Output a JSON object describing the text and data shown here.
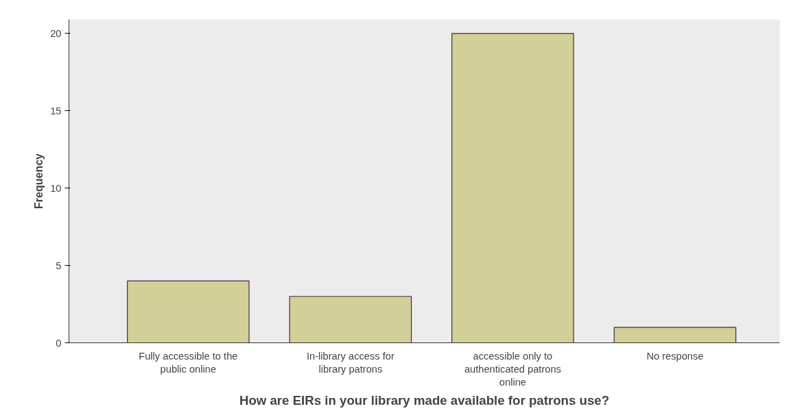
{
  "chart_data": {
    "type": "bar",
    "xlabel": "How are EIRs in your library made available for patrons use?",
    "ylabel": "Frequency",
    "categories": [
      "Fully accessible to the public online",
      "In-library access for library patrons",
      "accessible only to authenticated patrons online",
      "No response"
    ],
    "values": [
      4,
      3,
      20,
      1
    ],
    "color": "#d3cf98",
    "ylim": [
      0,
      20.9
    ],
    "yticks": [
      0,
      5,
      10,
      15,
      20
    ],
    "grid": false
  }
}
